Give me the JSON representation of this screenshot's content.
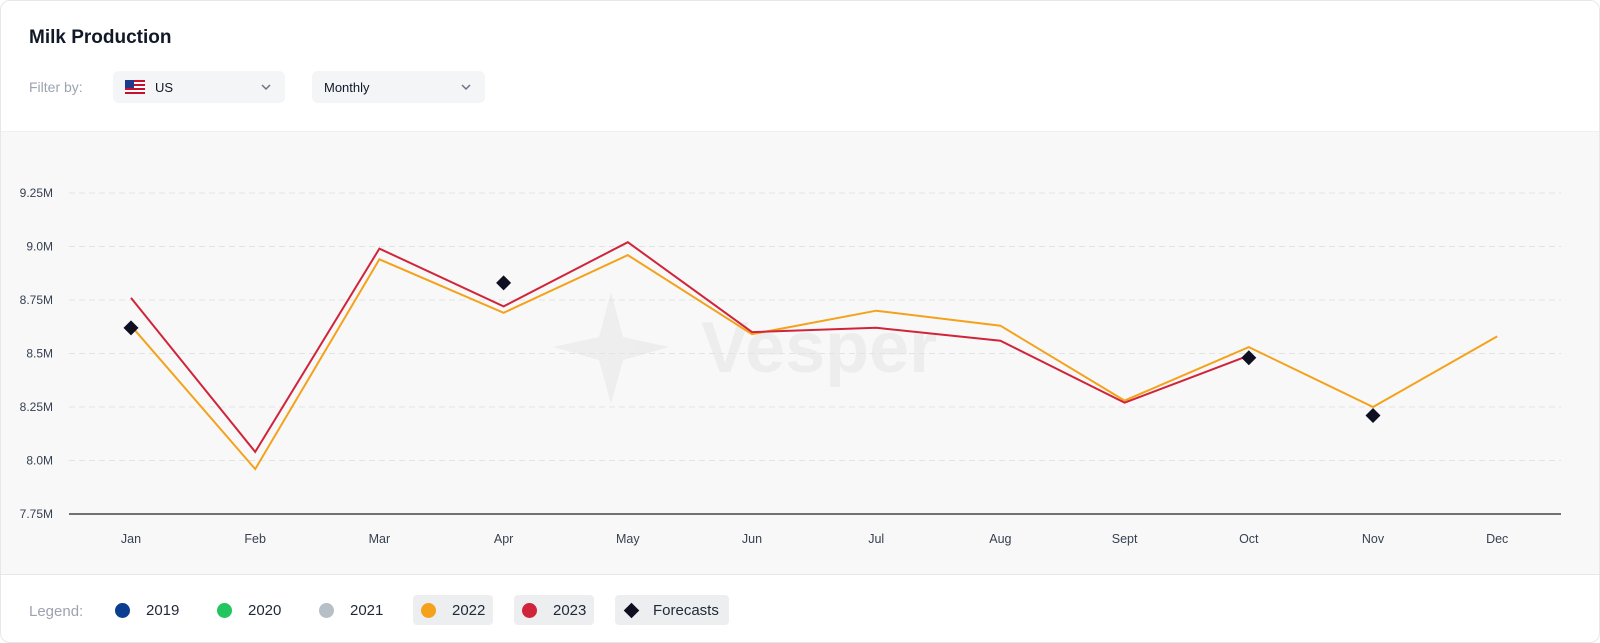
{
  "header": {
    "title": "Milk Production",
    "filter_label": "Filter by:",
    "country_select": {
      "value": "US",
      "icon": "us-flag-icon"
    },
    "period_select": {
      "value": "Monthly"
    }
  },
  "watermark": "Vesper",
  "legend": {
    "label": "Legend:",
    "items": [
      {
        "label": "2019",
        "color": "#0b3d91",
        "active": false
      },
      {
        "label": "2020",
        "color": "#22c55e",
        "active": false
      },
      {
        "label": "2021",
        "color": "#b6bec6",
        "active": false
      },
      {
        "label": "2022",
        "color": "#f4a21b",
        "active": true
      },
      {
        "label": "2023",
        "color": "#d0243a",
        "active": true
      },
      {
        "label": "Forecasts",
        "color": "#0f0f22",
        "active": true
      }
    ]
  },
  "chart_data": {
    "type": "line",
    "title": "Milk Production",
    "categories": [
      "Jan",
      "Feb",
      "Mar",
      "Apr",
      "May",
      "Jun",
      "Jul",
      "Aug",
      "Sept",
      "Oct",
      "Nov",
      "Dec"
    ],
    "yticks": [
      "7.75M",
      "8.0M",
      "8.25M",
      "8.5M",
      "8.75M",
      "9.0M",
      "9.25M"
    ],
    "ylim": [
      7.75,
      9.25
    ],
    "y_unit": "M",
    "grid": "horizontal dashed",
    "series": [
      {
        "name": "2022",
        "color": "#f4a21b",
        "values": [
          8.63,
          7.96,
          8.94,
          8.69,
          8.96,
          8.59,
          8.7,
          8.63,
          8.28,
          8.53,
          8.25,
          8.58
        ]
      },
      {
        "name": "2023",
        "color": "#d0243a",
        "values": [
          8.76,
          8.04,
          8.99,
          8.72,
          9.02,
          8.6,
          8.62,
          8.56,
          8.27,
          8.49,
          null,
          null
        ]
      },
      {
        "name": "Forecasts",
        "color": "#0f0f22",
        "marker": "diamond",
        "values": [
          8.62,
          null,
          null,
          8.83,
          null,
          null,
          null,
          null,
          null,
          8.48,
          8.21,
          null
        ]
      }
    ]
  }
}
